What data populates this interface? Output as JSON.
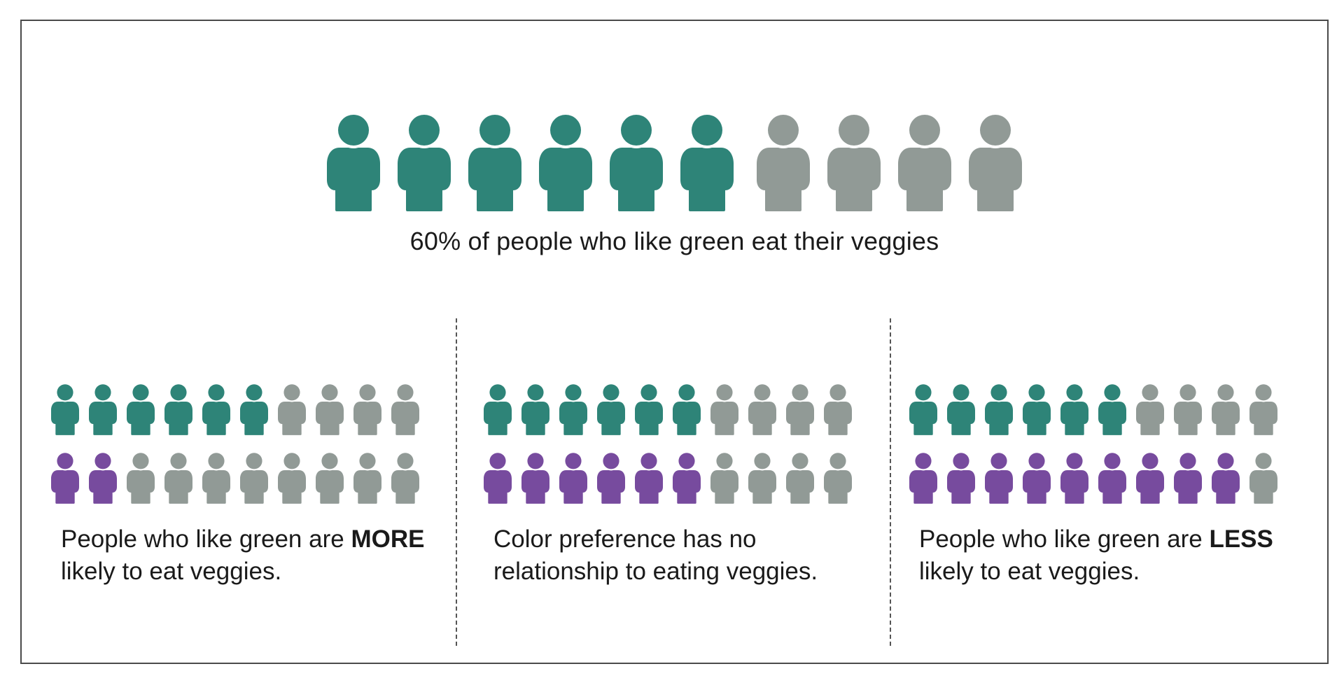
{
  "colors": {
    "green": "#2E8478",
    "gray": "#919A96",
    "purple": "#774B9E",
    "border": "#4A4A4A"
  },
  "icon_name": "person-icon",
  "main": {
    "caption": "60% of people who like green eat their veggies",
    "green_count": 6,
    "total": 10
  },
  "panels": [
    {
      "green_row_filled": 6,
      "purple_row_filled": 2,
      "text_before": "People who like green are ",
      "text_bold": "MORE",
      "text_after": " likely to eat veggies."
    },
    {
      "green_row_filled": 6,
      "purple_row_filled": 6,
      "text_before": "Color preference has no relationship to eating veggies.",
      "text_bold": "",
      "text_after": ""
    },
    {
      "green_row_filled": 6,
      "purple_row_filled": 9,
      "text_before": "People who like green are ",
      "text_bold": "LESS",
      "text_after": " likely to eat veggies."
    }
  ]
}
